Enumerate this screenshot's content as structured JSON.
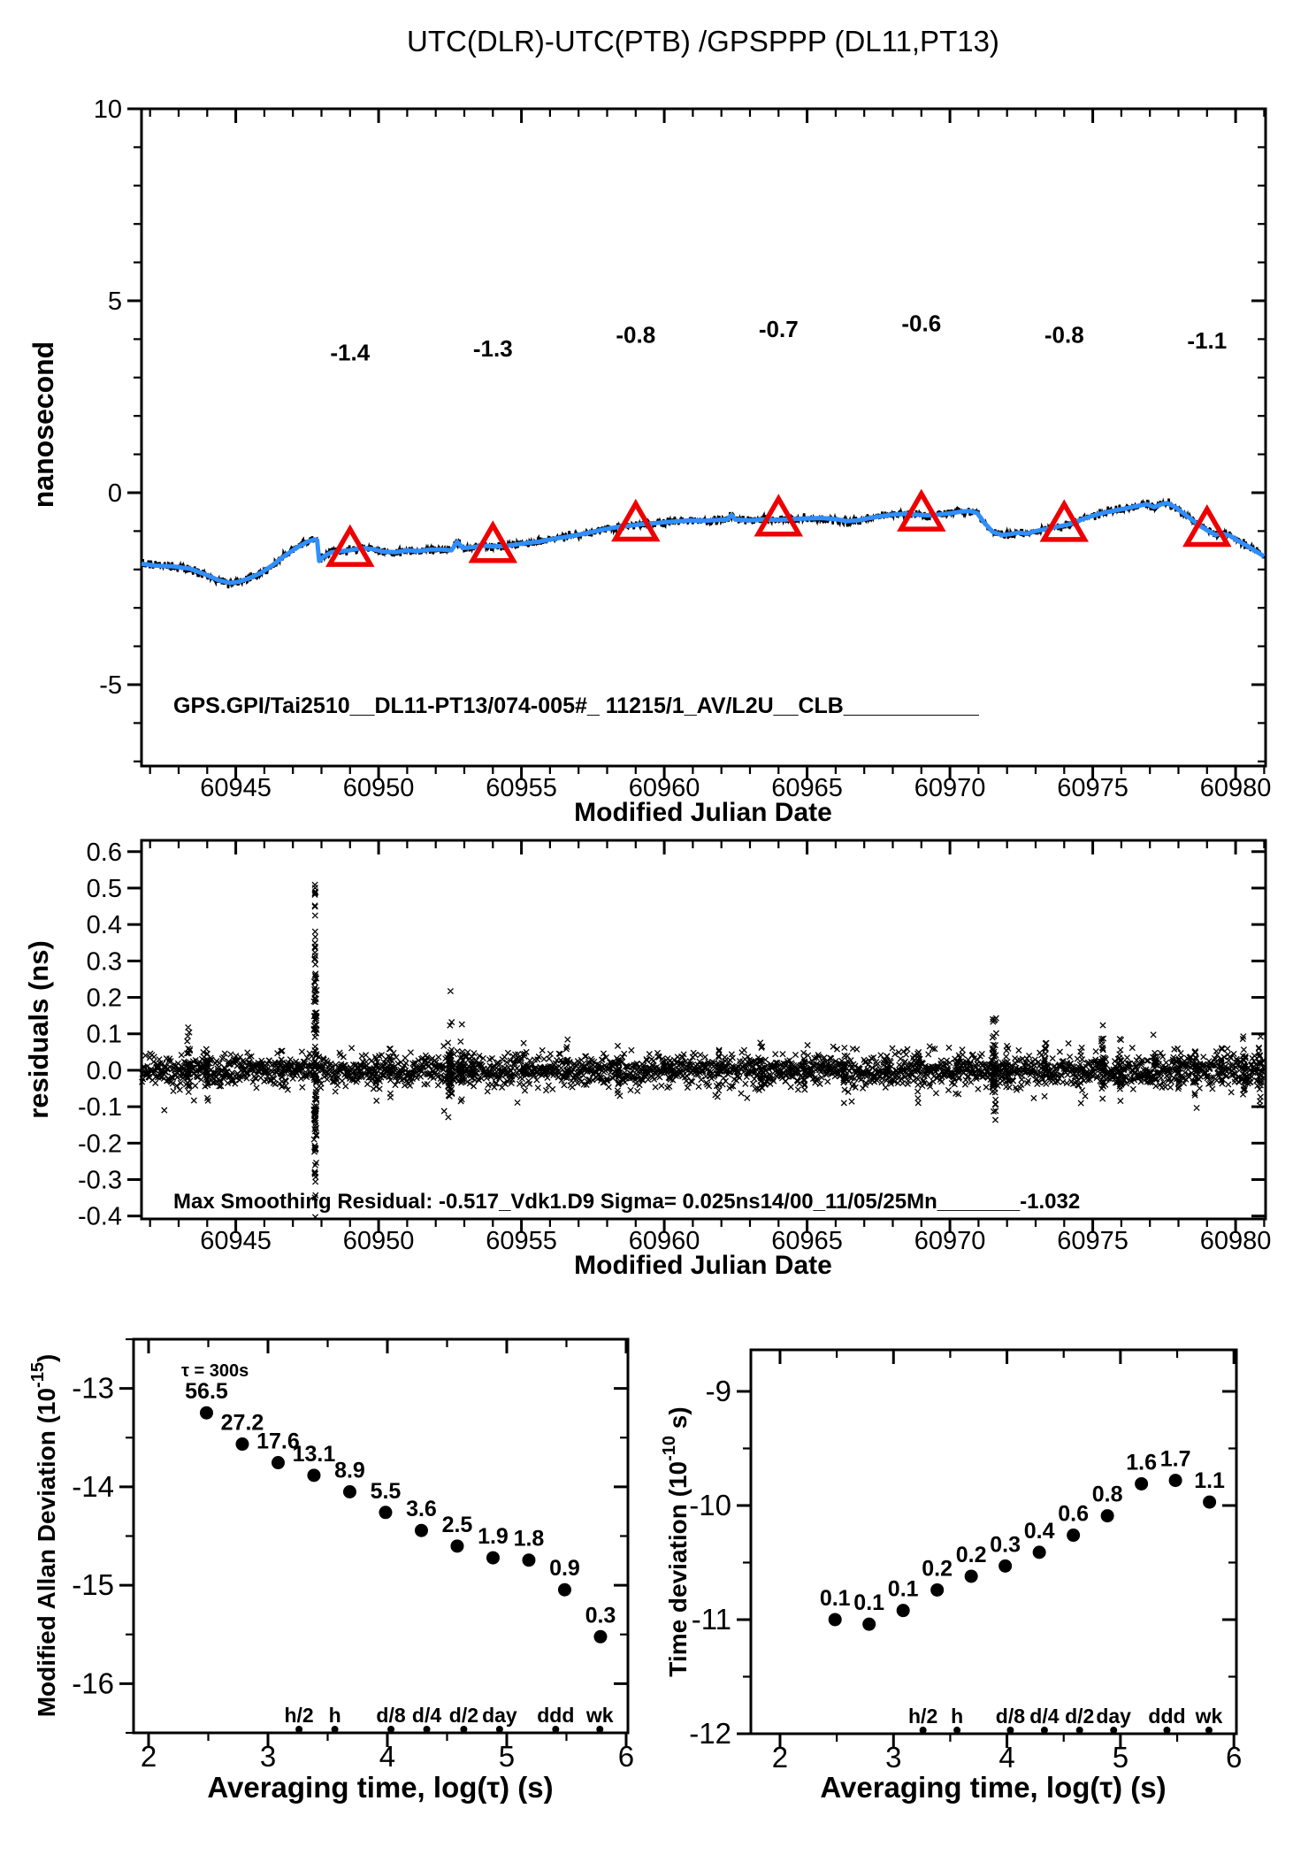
{
  "title": "UTC(DLR)-UTC(PTB)  /GPSPPP  (DL11,PT13)",
  "colors": {
    "ink": "#000000",
    "background": "#ffffff",
    "accent_red": "#ee0000",
    "curve_blue": "#2f8fff"
  },
  "chart_data": {
    "phase_panel": {
      "type": "line",
      "title": "UTC(DLR)-UTC(PTB)  /GPSPPP  (DL11,PT13)",
      "xlabel": "Modified Julian Date",
      "ylabel": "nanosecond",
      "xlim": [
        60941.7,
        60981.05
      ],
      "ylim": [
        -7.12,
        10
      ],
      "xticks": [
        60945,
        60950,
        60955,
        60960,
        60965,
        60970,
        60975,
        60980
      ],
      "xtick_labels": [
        "60945",
        "60950",
        "60955",
        "60960",
        "60965",
        "60970",
        "60975",
        "60980"
      ],
      "yticks": [
        10,
        5,
        0,
        -5
      ],
      "ytick_labels": [
        "10",
        "5",
        "0",
        "-5"
      ],
      "x_minor_step": 1,
      "y_minor_step": 1,
      "annotation": "GPS.GPI/Tai2510__DL11-PT13/074-005#_  11215/1_AV/L2U__CLB___________",
      "raw_series": {
        "name": "raw GPSPPP phase",
        "color": "#000000",
        "noise_ns": 0.05
      },
      "smoothed_series": {
        "name": "smoothed phase",
        "color": "#2f8fff",
        "anchors": [
          [
            60941.7,
            -1.85
          ],
          [
            60942.2,
            -1.9
          ],
          [
            60942.8,
            -1.92
          ],
          [
            60943.4,
            -1.98
          ],
          [
            60943.9,
            -2.12
          ],
          [
            60944.4,
            -2.28
          ],
          [
            60944.8,
            -2.35
          ],
          [
            60945.1,
            -2.32
          ],
          [
            60945.5,
            -2.22
          ],
          [
            60945.9,
            -2.08
          ],
          [
            60946.3,
            -1.88
          ],
          [
            60946.7,
            -1.65
          ],
          [
            60947.1,
            -1.45
          ],
          [
            60947.5,
            -1.28
          ],
          [
            60947.75,
            -1.22
          ],
          [
            60947.85,
            -1.24
          ],
          [
            60947.92,
            -1.78
          ],
          [
            60948.1,
            -1.65
          ],
          [
            60948.35,
            -1.55
          ],
          [
            60948.7,
            -1.52
          ],
          [
            60949.0,
            -1.5
          ],
          [
            60949.4,
            -1.44
          ],
          [
            60949.8,
            -1.47
          ],
          [
            60950.2,
            -1.54
          ],
          [
            60950.6,
            -1.55
          ],
          [
            60951.0,
            -1.5
          ],
          [
            60951.4,
            -1.52
          ],
          [
            60951.8,
            -1.48
          ],
          [
            60952.2,
            -1.48
          ],
          [
            60952.55,
            -1.5
          ],
          [
            60952.75,
            -1.28
          ],
          [
            60952.95,
            -1.44
          ],
          [
            60953.3,
            -1.42
          ],
          [
            60953.7,
            -1.38
          ],
          [
            60954.0,
            -1.4
          ],
          [
            60954.4,
            -1.39
          ],
          [
            60954.8,
            -1.35
          ],
          [
            60955.2,
            -1.31
          ],
          [
            60955.6,
            -1.28
          ],
          [
            60956.0,
            -1.22
          ],
          [
            60956.4,
            -1.17
          ],
          [
            60956.8,
            -1.12
          ],
          [
            60957.2,
            -1.07
          ],
          [
            60957.6,
            -1.0
          ],
          [
            60958.0,
            -0.94
          ],
          [
            60958.4,
            -0.89
          ],
          [
            60958.8,
            -0.86
          ],
          [
            60959.2,
            -0.82
          ],
          [
            60959.6,
            -0.8
          ],
          [
            60960.0,
            -0.77
          ],
          [
            60960.4,
            -0.75
          ],
          [
            60960.9,
            -0.72
          ],
          [
            60961.4,
            -0.73
          ],
          [
            60961.9,
            -0.71
          ],
          [
            60962.2,
            -0.7
          ],
          [
            60962.35,
            -0.58
          ],
          [
            60962.5,
            -0.7
          ],
          [
            60963.0,
            -0.72
          ],
          [
            60963.5,
            -0.7
          ],
          [
            60964.0,
            -0.71
          ],
          [
            60964.5,
            -0.69
          ],
          [
            60965.0,
            -0.67
          ],
          [
            60965.5,
            -0.66
          ],
          [
            60966.0,
            -0.69
          ],
          [
            60966.4,
            -0.74
          ],
          [
            60966.8,
            -0.72
          ],
          [
            60967.2,
            -0.66
          ],
          [
            60967.6,
            -0.61
          ],
          [
            60968.0,
            -0.57
          ],
          [
            60968.4,
            -0.55
          ],
          [
            60968.8,
            -0.57
          ],
          [
            60969.2,
            -0.59
          ],
          [
            60969.6,
            -0.57
          ],
          [
            60970.0,
            -0.54
          ],
          [
            60970.4,
            -0.49
          ],
          [
            60970.7,
            -0.48
          ],
          [
            60970.95,
            -0.53
          ],
          [
            60971.2,
            -0.78
          ],
          [
            60971.5,
            -1.02
          ],
          [
            60971.8,
            -1.1
          ],
          [
            60972.1,
            -1.08
          ],
          [
            60972.4,
            -1.04
          ],
          [
            60972.7,
            -1.07
          ],
          [
            60973.0,
            -1.0
          ],
          [
            60973.4,
            -0.94
          ],
          [
            60973.8,
            -0.88
          ],
          [
            60974.2,
            -0.82
          ],
          [
            60974.6,
            -0.7
          ],
          [
            60975.0,
            -0.6
          ],
          [
            60975.4,
            -0.52
          ],
          [
            60975.8,
            -0.46
          ],
          [
            60976.2,
            -0.4
          ],
          [
            60976.6,
            -0.34
          ],
          [
            60976.9,
            -0.3
          ],
          [
            60977.15,
            -0.38
          ],
          [
            60977.4,
            -0.3
          ],
          [
            60977.6,
            -0.27
          ],
          [
            60977.9,
            -0.38
          ],
          [
            60978.2,
            -0.55
          ],
          [
            60978.6,
            -0.78
          ],
          [
            60979.0,
            -0.98
          ],
          [
            60979.3,
            -1.1
          ],
          [
            60979.5,
            -1.06
          ],
          [
            60979.8,
            -1.12
          ],
          [
            60980.1,
            -1.26
          ],
          [
            60980.4,
            -1.38
          ],
          [
            60980.7,
            -1.52
          ],
          [
            60981.0,
            -1.66
          ]
        ]
      },
      "calibration_markers": {
        "marker": "open-triangle",
        "color": "#ee0000",
        "mjd": [
          60949,
          60954,
          60959,
          60964,
          60969,
          60974,
          60979
        ],
        "labels": [
          "-1.4",
          "-1.3",
          "-0.8",
          "-0.7",
          "-0.6",
          "-0.8",
          "-1.1"
        ],
        "label_y_ns": [
          3.45,
          3.55,
          3.9,
          4.05,
          4.2,
          3.9,
          3.75
        ]
      }
    },
    "residuals_panel": {
      "type": "scatter",
      "marker": "x",
      "xlabel": "Modified Julian Date",
      "ylabel": "residuals (ns)",
      "xlim": [
        60941.7,
        60981.05
      ],
      "ylim": [
        -0.408,
        0.631
      ],
      "xticks": [
        60945,
        60950,
        60955,
        60960,
        60965,
        60970,
        60975,
        60980
      ],
      "xtick_labels": [
        "60945",
        "60950",
        "60955",
        "60960",
        "60965",
        "60970",
        "60975",
        "60980"
      ],
      "yticks": [
        0.6,
        0.5,
        0.4,
        0.3,
        0.2,
        0.1,
        0.0,
        -0.1,
        -0.2,
        -0.3,
        -0.4
      ],
      "ytick_labels": [
        "0.6",
        "0.5",
        "0.4",
        "0.3",
        "0.2",
        "0.1",
        "0.0",
        "-0.1",
        "-0.2",
        "-0.3",
        "-0.4"
      ],
      "x_minor_step": 1,
      "annotation": "Max Smoothing Residual: -0.517_Vdk1.D9  Sigma= 0.025ns14/00_11/05/25Mn_______-1.032",
      "noise_sigma_ns": 0.021,
      "spike": {
        "mjd": 60947.78,
        "min_ns": -0.52,
        "max_ns": 0.52
      },
      "bursts": [
        [
          60943.35,
          0.05,
          0.045,
          25
        ],
        [
          60944.0,
          0.04,
          0.04,
          18
        ],
        [
          60946.6,
          0.03,
          0.035,
          10
        ],
        [
          60947.78,
          0.05,
          0.15,
          80
        ],
        [
          60949.9,
          0.03,
          0.035,
          12
        ],
        [
          60950.4,
          0.03,
          0.03,
          10
        ],
        [
          60952.5,
          0.07,
          0.06,
          45
        ],
        [
          60952.9,
          0.05,
          0.05,
          25
        ],
        [
          60953.3,
          0.04,
          0.04,
          15
        ],
        [
          60955.1,
          0.03,
          0.035,
          12
        ],
        [
          60956.6,
          0.03,
          0.03,
          10
        ],
        [
          60958.4,
          0.03,
          0.04,
          12
        ],
        [
          60960.2,
          0.03,
          0.03,
          10
        ],
        [
          60961.9,
          0.03,
          0.035,
          10
        ],
        [
          60963.4,
          0.04,
          0.04,
          15
        ],
        [
          60964.9,
          0.03,
          0.035,
          10
        ],
        [
          60966.3,
          0.04,
          0.04,
          14
        ],
        [
          60967.8,
          0.03,
          0.03,
          10
        ],
        [
          60968.9,
          0.03,
          0.035,
          10
        ],
        [
          60970.3,
          0.03,
          0.035,
          10
        ],
        [
          60971.55,
          0.07,
          0.07,
          60
        ],
        [
          60972.0,
          0.04,
          0.04,
          15
        ],
        [
          60973.35,
          0.04,
          0.04,
          14
        ],
        [
          60974.6,
          0.03,
          0.035,
          10
        ],
        [
          60975.35,
          0.05,
          0.05,
          28
        ],
        [
          60975.95,
          0.05,
          0.045,
          22
        ],
        [
          60977.2,
          0.03,
          0.035,
          10
        ],
        [
          60978.0,
          0.035,
          0.04,
          12
        ],
        [
          60978.6,
          0.04,
          0.045,
          16
        ],
        [
          60979.5,
          0.03,
          0.035,
          10
        ],
        [
          60980.3,
          0.05,
          0.045,
          20
        ],
        [
          60980.85,
          0.04,
          0.05,
          18
        ]
      ]
    },
    "mdev_panel": {
      "type": "scatter",
      "marker": "dot",
      "xlabel": "Averaging time, log(τ) (s)",
      "ylabel_parts": [
        "Modified Allan Deviation (10",
        "-15",
        ")"
      ],
      "xlim": [
        1.874,
        6.015
      ],
      "ylim": [
        -16.5,
        -12.5
      ],
      "xticks": [
        2,
        3,
        4,
        5,
        6
      ],
      "xtick_labels": [
        "2",
        "3",
        "4",
        "5",
        "6"
      ],
      "yticks": [
        -13,
        -14,
        -15,
        -16
      ],
      "ytick_labels": [
        "-13",
        "-14",
        "-15",
        "-16"
      ],
      "x_minor_step": 0.5,
      "y_minor_step": 0.5,
      "annotation": "τ = 300s",
      "log_tau": [
        2.485,
        2.785,
        3.085,
        3.385,
        3.685,
        3.985,
        4.285,
        4.585,
        4.885,
        5.185,
        5.485,
        5.785
      ],
      "values_1e15": [
        56.5,
        27.2,
        17.6,
        13.1,
        8.9,
        5.5,
        3.6,
        2.5,
        1.9,
        1.8,
        0.9,
        0.3
      ],
      "value_labels": [
        "56.5",
        "27.2",
        "17.6",
        "13.1",
        "8.9",
        "5.5",
        "3.6",
        "2.5",
        "1.9",
        "1.8",
        "0.9",
        "0.3"
      ],
      "tau_markers": {
        "labels": [
          "h/2",
          "h",
          "d/8",
          "d/4",
          "d/2",
          "day",
          "ddd",
          "wk"
        ],
        "log_tau": [
          3.26,
          3.56,
          4.03,
          4.33,
          4.64,
          4.94,
          5.41,
          5.78
        ]
      }
    },
    "tdev_panel": {
      "type": "scatter",
      "marker": "dot",
      "xlabel": "Averaging time, log(τ) (s)",
      "ylabel_parts": [
        "Time deviation (10",
        "-10",
        " s)"
      ],
      "xlim": [
        1.743,
        6.022
      ],
      "ylim": [
        -12,
        -8.636
      ],
      "xticks": [
        2,
        3,
        4,
        5,
        6
      ],
      "xtick_labels": [
        "2",
        "3",
        "4",
        "5",
        "6"
      ],
      "yticks": [
        -9,
        -10,
        -11,
        -12
      ],
      "ytick_labels": [
        "-9",
        "-10",
        "-11",
        "-12"
      ],
      "x_minor_step": 0.5,
      "y_minor_step": 0.5,
      "log_tau": [
        2.485,
        2.785,
        3.085,
        3.385,
        3.685,
        3.985,
        4.285,
        4.585,
        4.885,
        5.185,
        5.485,
        5.785
      ],
      "value_labels": [
        "0.1",
        "0.1",
        "0.1",
        "0.2",
        "0.2",
        "0.3",
        "0.4",
        "0.6",
        "0.8",
        "1.6",
        "1.7",
        "1.1"
      ],
      "plot_log10_s": [
        -11.0,
        -11.04,
        -10.92,
        -10.74,
        -10.62,
        -10.53,
        -10.41,
        -10.26,
        -10.09,
        -9.81,
        -9.78,
        -9.97
      ],
      "tau_markers": {
        "labels": [
          "h/2",
          "h",
          "d/8",
          "d/4",
          "d/2",
          "day",
          "ddd",
          "wk"
        ],
        "log_tau": [
          3.26,
          3.56,
          4.03,
          4.33,
          4.64,
          4.94,
          5.41,
          5.78
        ]
      }
    }
  }
}
